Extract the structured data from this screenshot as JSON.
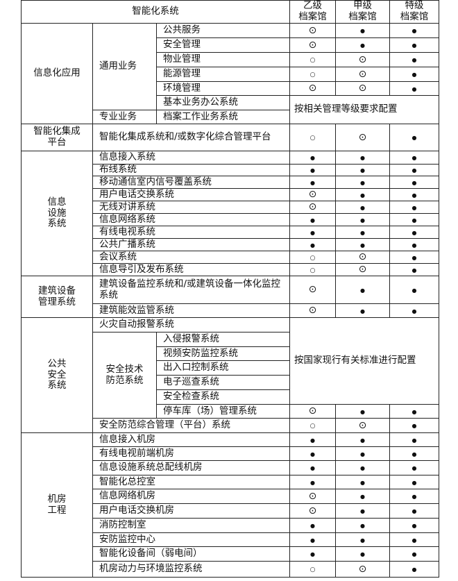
{
  "header": {
    "system": "智能化系统",
    "levels": [
      "乙级\n档案馆",
      "甲级\n档案馆",
      "特级\n档案馆"
    ]
  },
  "symbols": {
    "required": "●",
    "optional": "⊙",
    "possible": "○"
  },
  "sections": [
    {
      "label": "信息化应用",
      "rows": [
        {
          "sub": "通用业务",
          "name": "公共服务",
          "levels": [
            "⊙",
            "●",
            "●"
          ]
        },
        {
          "sub": "通用业务",
          "name": "安全管理",
          "levels": [
            "⊙",
            "●",
            "●"
          ]
        },
        {
          "sub": "通用业务",
          "name": "物业管理",
          "levels": [
            "○",
            "⊙",
            "●"
          ]
        },
        {
          "sub": "通用业务",
          "name": "能源管理",
          "levels": [
            "○",
            "⊙",
            "●"
          ]
        },
        {
          "sub": "通用业务",
          "name": "环境管理",
          "levels": [
            "⊙",
            "⊙",
            "●"
          ]
        },
        {
          "sub": "通用业务",
          "name": "基本业务办公系统",
          "note": "按相关管理等级要求配置"
        },
        {
          "sub": "专业业务",
          "name": "档案工作业务系统",
          "note": "按相关管理等级要求配置"
        }
      ]
    },
    {
      "label": "智能化集成\n平台",
      "rows": [
        {
          "name": "智能化集成系统和/或数字化综合管理平台",
          "levels": [
            "○",
            "⊙",
            "●"
          ]
        }
      ]
    },
    {
      "label": "信息\n设施\n系统",
      "rows": [
        {
          "name": "信息接入系统",
          "levels": [
            "●",
            "●",
            "●"
          ]
        },
        {
          "name": "布线系统",
          "levels": [
            "●",
            "●",
            "●"
          ]
        },
        {
          "name": "移动通信室内信号覆盖系统",
          "levels": [
            "●",
            "●",
            "●"
          ]
        },
        {
          "name": "用户电话交换系统",
          "levels": [
            "⊙",
            "●",
            "●"
          ]
        },
        {
          "name": "无线对讲系统",
          "levels": [
            "⊙",
            "●",
            "●"
          ]
        },
        {
          "name": "信息网络系统",
          "levels": [
            "●",
            "●",
            "●"
          ]
        },
        {
          "name": "有线电视系统",
          "levels": [
            "●",
            "●",
            "●"
          ]
        },
        {
          "name": "公共广播系统",
          "levels": [
            "●",
            "●",
            "●"
          ]
        },
        {
          "name": "会议系统",
          "levels": [
            "○",
            "⊙",
            "●"
          ]
        },
        {
          "name": "信息导引及发布系统",
          "levels": [
            "○",
            "⊙",
            "●"
          ]
        }
      ]
    },
    {
      "label": "建筑设备\n管理系统",
      "rows": [
        {
          "name": "建筑设备监控系统和/或建筑设备一体化监控系统",
          "levels": [
            "⊙",
            "●",
            "●"
          ]
        },
        {
          "name": "建筑能效监管系统",
          "levels": [
            "⊙",
            "●",
            "●"
          ]
        }
      ]
    },
    {
      "label": "公共\n安全\n系统",
      "rows": [
        {
          "name": "火灾自动报警系统",
          "note": "按国家现行有关标准进行配置"
        },
        {
          "sub": "安全技术\n防范系统",
          "name": "入侵报警系统",
          "note": "按国家现行有关标准进行配置"
        },
        {
          "sub": "安全技术\n防范系统",
          "name": "视频安防监控系统",
          "note": "按国家现行有关标准进行配置"
        },
        {
          "sub": "安全技术\n防范系统",
          "name": "出入口控制系统",
          "note": "按国家现行有关标准进行配置"
        },
        {
          "sub": "安全技术\n防范系统",
          "name": "电子巡查系统",
          "note": "按国家现行有关标准进行配置"
        },
        {
          "sub": "安全技术\n防范系统",
          "name": "安全检查系统",
          "note": "按国家现行有关标准进行配置"
        },
        {
          "sub": "安全技术\n防范系统",
          "name": "停车库（场）管理系统",
          "levels": [
            "⊙",
            "●",
            "●"
          ]
        },
        {
          "name": "安全防范综合管理（平台）系统",
          "levels": [
            "○",
            "⊙",
            "●"
          ]
        }
      ]
    },
    {
      "label": "机房\n工程",
      "rows": [
        {
          "name": "信息接入机房",
          "levels": [
            "●",
            "●",
            "●"
          ]
        },
        {
          "name": "有线电视前端机房",
          "levels": [
            "●",
            "●",
            "●"
          ]
        },
        {
          "name": "信息设施系统总配线机房",
          "levels": [
            "●",
            "●",
            "●"
          ]
        },
        {
          "name": "智能化总控室",
          "levels": [
            "●",
            "●",
            "●"
          ]
        },
        {
          "name": "信息网络机房",
          "levels": [
            "⊙",
            "●",
            "●"
          ]
        },
        {
          "name": "用户电话交换机房",
          "levels": [
            "⊙",
            "●",
            "●"
          ]
        },
        {
          "name": "消防控制室",
          "levels": [
            "●",
            "●",
            "●"
          ]
        },
        {
          "name": "安防监控中心",
          "levels": [
            "●",
            "●",
            "●"
          ]
        },
        {
          "name": "智能化设备间（弱电间）",
          "levels": [
            "●",
            "●",
            "●"
          ]
        },
        {
          "name": "机房动力与环境监控系统",
          "levels": [
            "○",
            "⊙",
            "●"
          ]
        }
      ]
    }
  ]
}
